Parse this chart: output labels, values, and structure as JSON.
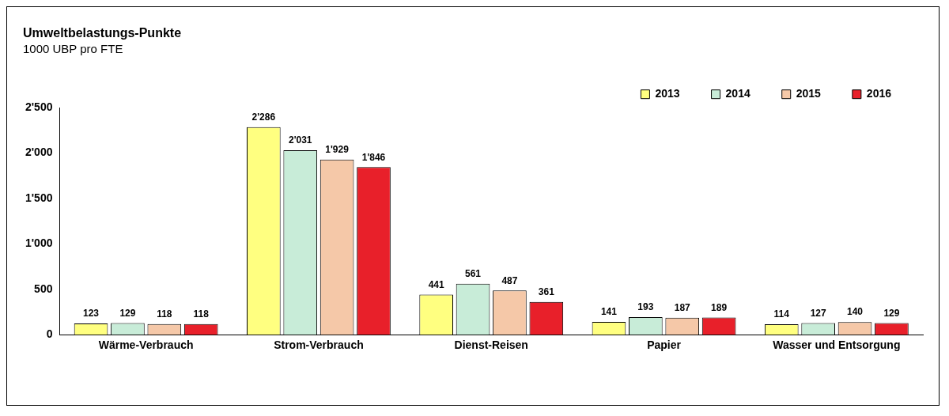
{
  "chart_data": {
    "type": "bar",
    "title": "Umweltbelastungs-Punkte",
    "subtitle": "1000 UBP pro FTE",
    "categories": [
      "Wärme-Verbrauch",
      "Strom-Verbrauch",
      "Dienst-Reisen",
      "Papier",
      "Wasser und Entsorgung"
    ],
    "series": [
      {
        "name": "2013",
        "color": "#ffff80",
        "values": [
          123,
          2286,
          441,
          141,
          114
        ],
        "value_labels": [
          "123",
          "2'286",
          "441",
          "141",
          "114"
        ]
      },
      {
        "name": "2014",
        "color": "#c8ecd8",
        "values": [
          129,
          2031,
          561,
          193,
          127
        ],
        "value_labels": [
          "129",
          "2'031",
          "561",
          "193",
          "127"
        ]
      },
      {
        "name": "2015",
        "color": "#f5c8a8",
        "values": [
          118,
          1929,
          487,
          187,
          140
        ],
        "value_labels": [
          "118",
          "1'929",
          "487",
          "187",
          "140"
        ]
      },
      {
        "name": "2016",
        "color": "#e8202a",
        "values": [
          118,
          1846,
          361,
          189,
          129
        ],
        "value_labels": [
          "118",
          "1'846",
          "361",
          "189",
          "129"
        ]
      }
    ],
    "ylim": [
      0,
      2500
    ],
    "yticks": [
      0,
      {
        "value": 500,
        "label": "500"
      },
      {
        "value": 1000,
        "label": "1'000"
      },
      {
        "value": 1500,
        "label": "1'500"
      },
      {
        "value": 2000,
        "label": "2'000"
      },
      {
        "value": 2500,
        "label": "2'500"
      }
    ],
    "grid": false,
    "legend": "top right"
  }
}
